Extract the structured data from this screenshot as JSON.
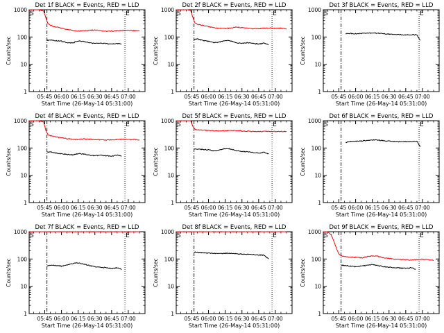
{
  "chart_data": [
    {
      "type": "line",
      "title": "Det 1f BLACK = Events, RED = LLD",
      "xlabel": "Start Time (26-May-14 05:31:00)",
      "ylabel": "Counts/sec",
      "ylog": true,
      "ylim": [
        1,
        1000
      ],
      "xlim": [
        "05:31",
        "07:15"
      ],
      "xticks": [
        "05:45",
        "06:00",
        "06:15",
        "06:30",
        "06:45",
        "07:00"
      ],
      "yticks": [
        "1",
        "10",
        "100",
        "1000"
      ],
      "markers": [
        {
          "label": "S",
          "x": "05:31"
        },
        {
          "label": "E",
          "x": "06:57"
        }
      ],
      "vlines": [
        {
          "x": "05:47",
          "style": "dashdot"
        },
        {
          "x": "06:57",
          "style": "dotted"
        }
      ],
      "series": [
        {
          "color": "#000000",
          "x": [
            "05:47",
            "05:50",
            "05:55",
            "06:00",
            "06:05",
            "06:10",
            "06:15",
            "06:20",
            "06:25",
            "06:30",
            "06:35",
            "06:40",
            "06:45",
            "06:50",
            "06:54"
          ],
          "values": [
            75,
            78,
            73,
            70,
            62,
            60,
            72,
            68,
            62,
            58,
            60,
            57,
            55,
            58,
            55
          ]
        },
        {
          "color": "#ff0000",
          "x": [
            "05:31",
            "05:40",
            "05:44",
            "05:46",
            "05:48",
            "05:52",
            "05:56",
            "06:00",
            "06:05",
            "06:10",
            "06:15",
            "06:20",
            "06:25",
            "06:30",
            "06:35",
            "06:40",
            "06:45",
            "06:50",
            "06:55",
            "07:00",
            "07:05",
            "07:10"
          ],
          "values": [
            1000,
            1000,
            900,
            500,
            300,
            250,
            230,
            210,
            190,
            175,
            165,
            170,
            175,
            180,
            170,
            160,
            165,
            170,
            175,
            180,
            170,
            175
          ]
        }
      ]
    },
    {
      "type": "line",
      "title": "Det 2f BLACK = Events, RED = LLD",
      "xlabel": "Start Time (26-May-14 05:31:00)",
      "ylabel": "Counts/sec",
      "ylog": true,
      "ylim": [
        1,
        1000
      ],
      "xlim": [
        "05:31",
        "07:15"
      ],
      "xticks": [
        "05:45",
        "06:00",
        "06:15",
        "06:30",
        "06:45",
        "07:00"
      ],
      "yticks": [
        "1",
        "10",
        "100",
        "1000"
      ],
      "markers": [
        {
          "label": "S",
          "x": "05:31"
        },
        {
          "label": "E",
          "x": "06:57"
        }
      ],
      "vlines": [
        {
          "x": "05:47",
          "style": "dashdot"
        },
        {
          "x": "06:57",
          "style": "dotted"
        }
      ],
      "series": [
        {
          "color": "#000000",
          "x": [
            "05:47",
            "05:50",
            "05:55",
            "06:00",
            "06:05",
            "06:10",
            "06:15",
            "06:20",
            "06:25",
            "06:30",
            "06:35",
            "06:40",
            "06:45",
            "06:50",
            "06:54"
          ],
          "values": [
            80,
            85,
            75,
            70,
            62,
            65,
            75,
            72,
            62,
            58,
            62,
            58,
            55,
            60,
            52
          ]
        },
        {
          "color": "#ff0000",
          "x": [
            "05:31",
            "05:40",
            "05:44",
            "05:46",
            "05:48",
            "05:52",
            "05:56",
            "06:00",
            "06:05",
            "06:10",
            "06:15",
            "06:20",
            "06:25",
            "06:30",
            "06:35",
            "06:40",
            "06:45",
            "06:50",
            "06:55",
            "07:00",
            "07:05",
            "07:10"
          ],
          "values": [
            1000,
            1000,
            950,
            500,
            320,
            280,
            260,
            240,
            220,
            210,
            205,
            215,
            230,
            220,
            210,
            200,
            205,
            210,
            215,
            205,
            210,
            200
          ]
        }
      ]
    },
    {
      "type": "line",
      "title": "Det 3f BLACK = Events, RED = LLD",
      "xlabel": "Start Time (26-May-14 05:31:00)",
      "ylabel": "Counts/sec",
      "ylog": true,
      "ylim": [
        1,
        1000
      ],
      "xlim": [
        "05:31",
        "07:15"
      ],
      "xticks": [
        "05:45",
        "06:00",
        "06:15",
        "06:30",
        "06:45",
        "07:00"
      ],
      "yticks": [
        "1",
        "10",
        "100",
        "1000"
      ],
      "markers": [
        {
          "label": "S",
          "x": "05:31"
        },
        {
          "label": "E",
          "x": "06:57"
        }
      ],
      "vlines": [
        {
          "x": "05:47",
          "style": "dashdot"
        },
        {
          "x": "06:57",
          "style": "dotted"
        }
      ],
      "series": [
        {
          "color": "#000000",
          "x": [
            "05:51",
            "05:55",
            "06:00",
            "06:05",
            "06:10",
            "06:15",
            "06:20",
            "06:25",
            "06:30",
            "06:35",
            "06:40",
            "06:45",
            "06:50",
            "06:55",
            "06:58"
          ],
          "values": [
            130,
            135,
            132,
            135,
            138,
            140,
            138,
            132,
            128,
            125,
            122,
            120,
            122,
            120,
            75
          ]
        }
      ]
    },
    {
      "type": "line",
      "title": "Det 4f BLACK = Events, RED = LLD",
      "xlabel": "Start Time (26-May-14 05:31:00)",
      "ylabel": "Counts/sec",
      "ylog": true,
      "ylim": [
        1,
        1000
      ],
      "xlim": [
        "05:31",
        "07:15"
      ],
      "xticks": [
        "05:45",
        "06:00",
        "06:15",
        "06:30",
        "06:45",
        "07:00"
      ],
      "yticks": [
        "1",
        "10",
        "100",
        "1000"
      ],
      "markers": [
        {
          "label": "S",
          "x": "05:31"
        },
        {
          "label": "E",
          "x": "06:57"
        }
      ],
      "vlines": [
        {
          "x": "05:47",
          "style": "dashdot"
        },
        {
          "x": "06:57",
          "style": "dotted"
        }
      ],
      "series": [
        {
          "color": "#000000",
          "x": [
            "05:47",
            "05:50",
            "05:55",
            "06:00",
            "06:05",
            "06:10",
            "06:15",
            "06:20",
            "06:25",
            "06:30",
            "06:35",
            "06:40",
            "06:45",
            "06:50",
            "06:54"
          ],
          "values": [
            70,
            72,
            65,
            62,
            58,
            56,
            62,
            60,
            55,
            52,
            55,
            52,
            50,
            55,
            50
          ]
        },
        {
          "color": "#ff0000",
          "x": [
            "05:31",
            "05:40",
            "05:44",
            "05:46",
            "05:48",
            "05:52",
            "05:56",
            "06:00",
            "06:05",
            "06:10",
            "06:15",
            "06:20",
            "06:25",
            "06:30",
            "06:35",
            "06:40",
            "06:45",
            "06:50",
            "06:55",
            "07:00",
            "07:05",
            "07:10"
          ],
          "values": [
            1000,
            1000,
            900,
            450,
            300,
            270,
            250,
            235,
            220,
            210,
            205,
            215,
            210,
            205,
            200,
            195,
            200,
            205,
            210,
            200,
            205,
            200
          ]
        }
      ]
    },
    {
      "type": "line",
      "title": "Det 5f BLACK = Events, RED = LLD",
      "xlabel": "Start Time (26-May-14 05:31:00)",
      "ylabel": "Counts/sec",
      "ylog": true,
      "ylim": [
        1,
        1000
      ],
      "xlim": [
        "05:31",
        "07:15"
      ],
      "xticks": [
        "05:45",
        "06:00",
        "06:15",
        "06:30",
        "06:45",
        "07:00"
      ],
      "yticks": [
        "1",
        "10",
        "100",
        "1000"
      ],
      "markers": [
        {
          "label": "S",
          "x": "05:31"
        },
        {
          "label": "E",
          "x": "06:57"
        }
      ],
      "vlines": [
        {
          "x": "05:47",
          "style": "dashdot"
        },
        {
          "x": "06:57",
          "style": "dotted"
        }
      ],
      "series": [
        {
          "color": "#000000",
          "x": [
            "05:47",
            "05:50",
            "05:55",
            "06:00",
            "06:05",
            "06:10",
            "06:15",
            "06:20",
            "06:25",
            "06:30",
            "06:35",
            "06:40",
            "06:45",
            "06:50",
            "06:54"
          ],
          "values": [
            90,
            92,
            88,
            85,
            80,
            85,
            95,
            92,
            80,
            75,
            72,
            68,
            65,
            70,
            60
          ]
        },
        {
          "color": "#ff0000",
          "x": [
            "05:31",
            "05:40",
            "05:44",
            "05:46",
            "05:48",
            "05:52",
            "05:56",
            "06:00",
            "06:05",
            "06:10",
            "06:15",
            "06:20",
            "06:25",
            "06:30",
            "06:35",
            "06:40",
            "06:45",
            "06:50",
            "06:55",
            "07:00",
            "07:05",
            "07:10"
          ],
          "values": [
            1000,
            1000,
            1000,
            600,
            480,
            460,
            450,
            440,
            430,
            425,
            430,
            440,
            430,
            420,
            410,
            405,
            400,
            405,
            410,
            400,
            405,
            400
          ]
        }
      ]
    },
    {
      "type": "line",
      "title": "Det 6f BLACK = Events, RED = LLD",
      "xlabel": "Start Time (26-May-14 05:31:00)",
      "ylabel": "Counts/sec",
      "ylog": true,
      "ylim": [
        1,
        1000
      ],
      "xlim": [
        "05:31",
        "07:15"
      ],
      "xticks": [
        "05:45",
        "06:00",
        "06:15",
        "06:30",
        "06:45",
        "07:00"
      ],
      "yticks": [
        "1",
        "10",
        "100",
        "1000"
      ],
      "markers": [
        {
          "label": "S",
          "x": "05:31"
        },
        {
          "label": "E",
          "x": "06:57"
        }
      ],
      "vlines": [
        {
          "x": "05:47",
          "style": "dashdot"
        },
        {
          "x": "06:57",
          "style": "dotted"
        }
      ],
      "series": [
        {
          "color": "#000000",
          "x": [
            "05:51",
            "05:55",
            "06:00",
            "06:05",
            "06:10",
            "06:15",
            "06:20",
            "06:25",
            "06:30",
            "06:35",
            "06:40",
            "06:45",
            "06:50",
            "06:55",
            "06:58"
          ],
          "values": [
            160,
            170,
            175,
            180,
            190,
            200,
            195,
            185,
            178,
            172,
            170,
            168,
            172,
            175,
            110
          ]
        }
      ]
    },
    {
      "type": "line",
      "title": "Det 7f BLACK = Events, RED = LLD",
      "xlabel": "Start Time (26-May-14 05:31:00)",
      "ylabel": "Counts/sec",
      "ylog": true,
      "ylim": [
        1,
        1000
      ],
      "xlim": [
        "05:31",
        "07:15"
      ],
      "xticks": [
        "05:45",
        "06:00",
        "06:15",
        "06:30",
        "06:45",
        "07:00"
      ],
      "yticks": [
        "1",
        "10",
        "100",
        "1000"
      ],
      "markers": [
        {
          "label": "S",
          "x": "05:31"
        },
        {
          "label": "E",
          "x": "06:57"
        }
      ],
      "vlines": [
        {
          "x": "05:47",
          "style": "dashdot"
        },
        {
          "x": "06:57",
          "style": "dotted"
        }
      ],
      "series": [
        {
          "color": "#000000",
          "x": [
            "05:47",
            "05:50",
            "05:55",
            "06:00",
            "06:05",
            "06:10",
            "06:15",
            "06:20",
            "06:25",
            "06:30",
            "06:35",
            "06:40",
            "06:45",
            "06:50",
            "06:54"
          ],
          "values": [
            55,
            60,
            58,
            55,
            60,
            68,
            72,
            65,
            58,
            52,
            50,
            48,
            45,
            48,
            42
          ]
        },
        {
          "color": "#ff0000",
          "x": [
            "05:31",
            "05:40",
            "05:45",
            "05:50",
            "05:55",
            "06:00",
            "06:10",
            "06:20",
            "06:30",
            "06:40",
            "06:50",
            "07:00",
            "07:10"
          ],
          "values": [
            1000,
            1000,
            1000,
            1000,
            1000,
            1000,
            1000,
            1000,
            1000,
            1000,
            1000,
            1000,
            1000
          ]
        }
      ]
    },
    {
      "type": "line",
      "title": "Det 8f BLACK = Events, RED = LLD",
      "xlabel": "Start Time (26-May-14 05:31:00)",
      "ylabel": "Counts/sec",
      "ylog": true,
      "ylim": [
        1,
        1000
      ],
      "xlim": [
        "05:31",
        "07:15"
      ],
      "xticks": [
        "05:45",
        "06:00",
        "06:15",
        "06:30",
        "06:45",
        "07:00"
      ],
      "yticks": [
        "1",
        "10",
        "100",
        "1000"
      ],
      "markers": [
        {
          "label": "S",
          "x": "05:31"
        },
        {
          "label": "E",
          "x": "06:57"
        }
      ],
      "vlines": [
        {
          "x": "05:47",
          "style": "dashdot"
        },
        {
          "x": "06:57",
          "style": "dotted"
        }
      ],
      "series": [
        {
          "color": "#000000",
          "x": [
            "05:47",
            "05:50",
            "05:55",
            "06:00",
            "06:05",
            "06:10",
            "06:15",
            "06:20",
            "06:25",
            "06:30",
            "06:35",
            "06:40",
            "06:45",
            "06:50",
            "06:54"
          ],
          "values": [
            180,
            175,
            170,
            165,
            160,
            158,
            162,
            160,
            155,
            150,
            148,
            145,
            140,
            138,
            100
          ]
        },
        {
          "color": "#ff0000",
          "x": [
            "05:31",
            "05:40",
            "05:45",
            "05:50",
            "05:55",
            "06:00",
            "06:10",
            "06:20",
            "06:30",
            "06:40",
            "06:50",
            "07:00",
            "07:10"
          ],
          "values": [
            1000,
            1000,
            1000,
            1000,
            1000,
            1000,
            1000,
            1000,
            1000,
            1000,
            1000,
            1000,
            1000
          ]
        }
      ]
    },
    {
      "type": "line",
      "title": "Det 9f BLACK = Events, RED = LLD",
      "xlabel": "Start Time (26-May-14 05:31:00)",
      "ylabel": "Counts/sec",
      "ylog": true,
      "ylim": [
        1,
        1000
      ],
      "xlim": [
        "05:31",
        "07:15"
      ],
      "xticks": [
        "05:45",
        "06:00",
        "06:15",
        "06:30",
        "06:45",
        "07:00"
      ],
      "yticks": [
        "1",
        "10",
        "100",
        "1000"
      ],
      "markers": [
        {
          "label": "S",
          "x": "05:31"
        },
        {
          "label": "E",
          "x": "06:57"
        }
      ],
      "vlines": [
        {
          "x": "05:47",
          "style": "dashdot"
        },
        {
          "x": "06:57",
          "style": "dotted"
        }
      ],
      "series": [
        {
          "color": "#000000",
          "x": [
            "05:47",
            "05:50",
            "05:55",
            "06:00",
            "06:05",
            "06:10",
            "06:15",
            "06:20",
            "06:25",
            "06:30",
            "06:35",
            "06:40",
            "06:45",
            "06:50",
            "06:54"
          ],
          "values": [
            60,
            58,
            55,
            52,
            55,
            58,
            62,
            58,
            52,
            50,
            48,
            47,
            45,
            48,
            42
          ]
        },
        {
          "color": "#ff0000",
          "x": [
            "05:31",
            "05:35",
            "05:38",
            "05:42",
            "05:45",
            "05:48",
            "05:52",
            "05:56",
            "06:00",
            "06:05",
            "06:10",
            "06:15",
            "06:20",
            "06:25",
            "06:30",
            "06:35",
            "06:40",
            "06:45",
            "06:50",
            "06:55",
            "07:00",
            "07:05",
            "07:10"
          ],
          "values": [
            1000,
            1000,
            800,
            300,
            150,
            125,
            120,
            118,
            115,
            110,
            120,
            130,
            125,
            112,
            105,
            100,
            98,
            95,
            92,
            95,
            98,
            95,
            90
          ]
        }
      ]
    }
  ]
}
